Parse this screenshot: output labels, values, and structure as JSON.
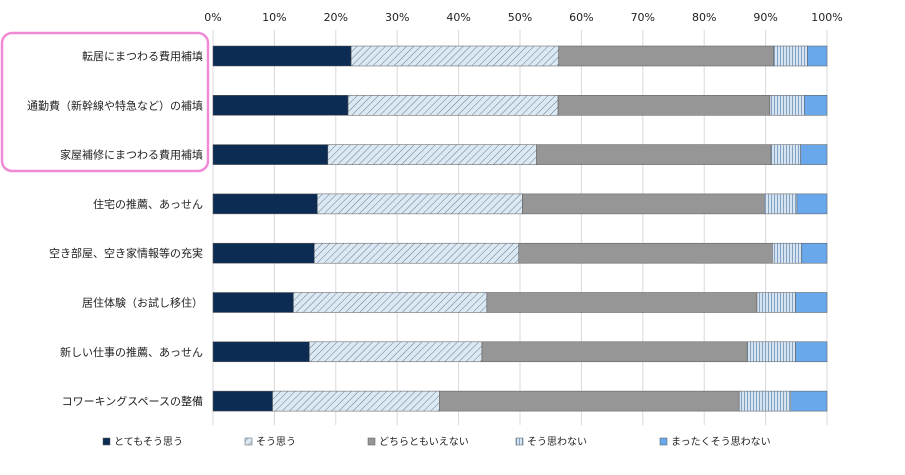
{
  "chart_data": {
    "type": "bar",
    "orientation": "horizontal",
    "stacked": true,
    "normalized": true,
    "title": "",
    "xlabel": "",
    "ylabel": "",
    "xlim": [
      0,
      100
    ],
    "x_ticks": [
      "0%",
      "10%",
      "20%",
      "30%",
      "40%",
      "50%",
      "60%",
      "70%",
      "80%",
      "90%",
      "100%"
    ],
    "categories": [
      "転居にまつわる費用補填",
      "通勤費（新幹線や特急など）の補填",
      "家屋補修にまつわる費用補填",
      "住宅の推薦、あっせん",
      "空き部屋、空き家情報等の充実",
      "居住体験（お試し移住）",
      "新しい仕事の推薦、あっせん",
      "コワーキングスペースの整備"
    ],
    "series": [
      {
        "name": "とてもそう思う",
        "values": [
          22.5,
          22.0,
          18.7,
          17.0,
          16.5,
          13.1,
          15.7,
          9.7
        ]
      },
      {
        "name": "そう思う",
        "values": [
          33.8,
          34.2,
          34.0,
          33.4,
          33.3,
          31.5,
          28.1,
          27.2
        ]
      },
      {
        "name": "どちらともいえない",
        "values": [
          35.0,
          34.5,
          38.2,
          39.4,
          41.3,
          44.0,
          43.2,
          48.8
        ]
      },
      {
        "name": "そう思わない",
        "values": [
          5.5,
          5.6,
          4.8,
          5.3,
          4.8,
          6.3,
          7.9,
          8.4
        ]
      },
      {
        "name": "まったくそう思わない",
        "values": [
          3.2,
          3.7,
          4.3,
          4.9,
          4.1,
          5.1,
          5.1,
          5.9
        ]
      }
    ],
    "colors": {
      "とてもそう思う": "#0d2c54",
      "そう思う": "#dce8f2",
      "どちらともいえない": "#969696",
      "そう思わない": "#c2d4e6",
      "まったくそう思わない": "#6aa8ec"
    },
    "highlight": {
      "categories": [
        0,
        1,
        2
      ],
      "color": "#f08ad6"
    },
    "grid": true,
    "legend_position": "bottom"
  }
}
